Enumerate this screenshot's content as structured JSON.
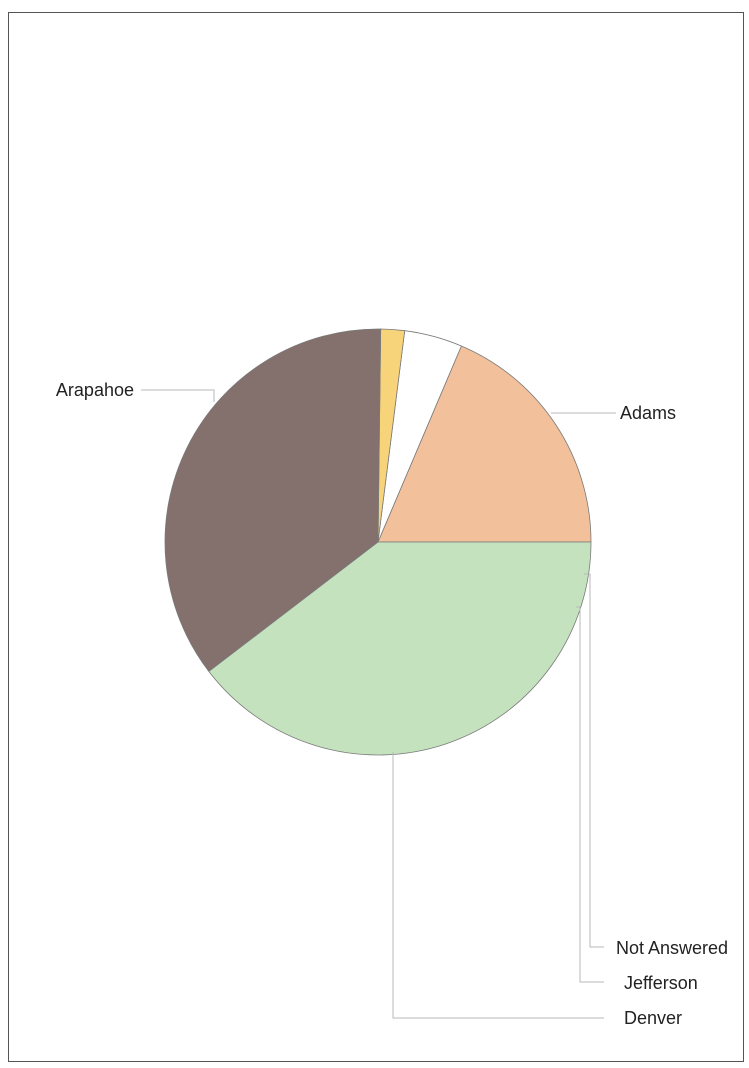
{
  "chart_data": {
    "type": "pie",
    "title": "",
    "legend": "none",
    "slices": [
      {
        "label": "Adams",
        "value": 18.6,
        "color": "#f2c09b"
      },
      {
        "label": "Not Answered",
        "value": 4.4,
        "color": "#ffffff"
      },
      {
        "label": "Jefferson",
        "value": 1.8,
        "color": "#f7d37a"
      },
      {
        "label": "Denver",
        "value": 35.6,
        "color": "#84706c"
      },
      {
        "label": "Arapahoe",
        "value": 39.6,
        "color": "#c5e2bf"
      }
    ]
  }
}
